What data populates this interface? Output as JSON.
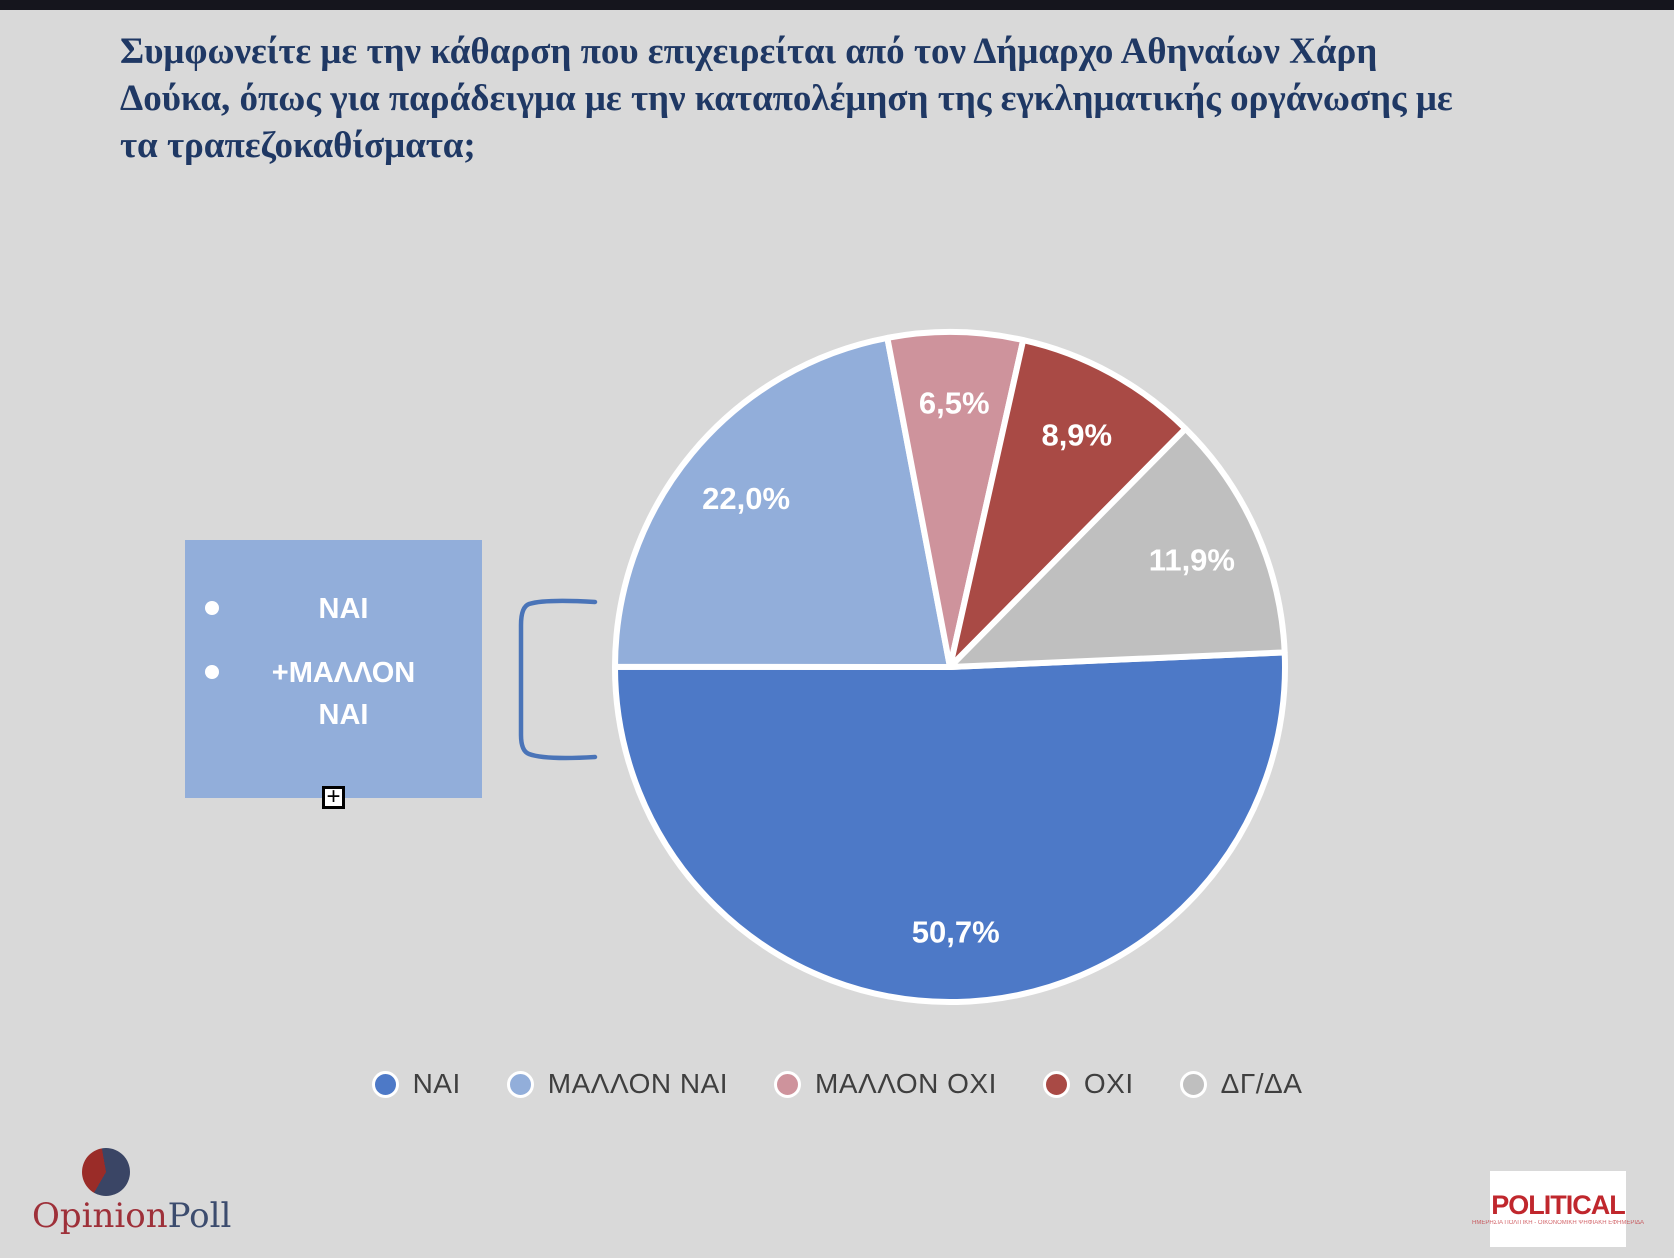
{
  "question": {
    "text": "Συμφωνείτε με την κάθαρση που επιχειρείται από τον Δήμαρχο Αθηναίων Χάρη Δούκα, όπως για παράδειγμα με την καταπολέμηση της εγκληματικής οργάνωσης με τα τραπεζοκαθίσματα;"
  },
  "chart_data": {
    "type": "pie",
    "title": "",
    "categories": [
      "ΝΑΙ",
      "ΜΑΛΛΟΝ ΝΑΙ",
      "ΜΑΛΛΟΝ ΟΧΙ",
      "ΟΧΙ",
      "ΔΓ/ΔΑ"
    ],
    "values": [
      50.7,
      22.0,
      6.5,
      8.9,
      11.9
    ],
    "data_labels": [
      "50,7%",
      "22,0%",
      "6,5%",
      "8,9%",
      "11,9%"
    ],
    "colors": [
      "#4D79C7",
      "#92AEDA",
      "#CE939C",
      "#A94A45",
      "#BFBFBF"
    ],
    "start_angle_deg": 87.5,
    "direction": "clockwise",
    "slice_border_color": "#FFFFFF",
    "legend_position": "bottom"
  },
  "callout": {
    "bullets": [
      "ΝΑΙ",
      "+ΜΑΛΛΟΝ ΝΑΙ"
    ],
    "box_color": "#92AEDA",
    "expand_glyph": "+"
  },
  "colors": {
    "background": "#D9D9D9",
    "top_bar": "#15151D",
    "title_navy": "#1F3864",
    "legend_text": "#3F3F3F",
    "bracket_blue": "#4A74B8"
  },
  "logos": {
    "opinionpoll": {
      "text_primary": "Opinion",
      "text_secondary": "Poll",
      "primary_color": "#9E3039",
      "secondary_color": "#3C4C6E"
    },
    "political": {
      "name": "POLITICAL",
      "tagline": "ΗΜΕΡΗΣΙΑ ΠΟΛΙΤΙΚΗ - ΟΙΚΟΝΟΜΙΚΗ ΨΗΦΙΑΚΗ ΕΦΗΜΕΡΙΔΑ",
      "name_color": "#C0272D"
    }
  }
}
